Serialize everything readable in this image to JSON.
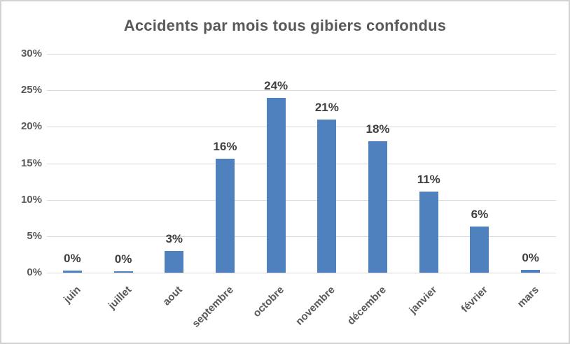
{
  "page": {
    "background": "#ffffff",
    "frame_border_color": "#d2d2d2"
  },
  "chart_data": {
    "type": "bar",
    "title": "Accidents par mois tous gibiers confondus",
    "categories": [
      "juin",
      "juillet",
      "aout",
      "septembre",
      "octobre",
      "novembre",
      "décembre",
      "janvier",
      "février",
      "mars"
    ],
    "values": [
      0.3,
      0.2,
      3,
      15.6,
      24,
      21,
      18,
      11.1,
      6.3,
      0.4
    ],
    "data_labels": [
      "0%",
      "0%",
      "3%",
      "16%",
      "24%",
      "21%",
      "18%",
      "11%",
      "6%",
      "0%"
    ],
    "xlabel": "",
    "ylabel": "",
    "ylim": [
      0,
      30
    ],
    "ytick_step": 5,
    "ytick_labels": [
      "0%",
      "5%",
      "10%",
      "15%",
      "20%",
      "25%",
      "30%"
    ],
    "grid": true,
    "legend": "none",
    "colors": {
      "bar": "#4e81bd",
      "gridline": "#d9d9d9",
      "axis_text": "#595959",
      "data_label": "#404040",
      "title": "#595959"
    }
  }
}
